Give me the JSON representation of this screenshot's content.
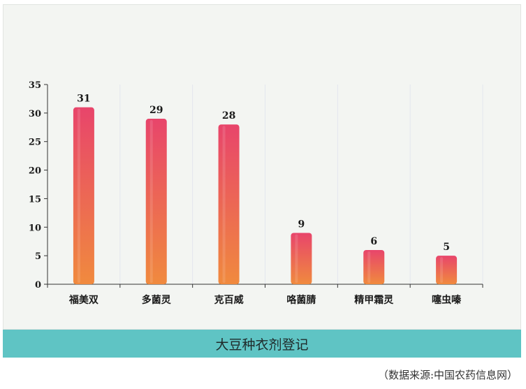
{
  "chart_data": {
    "type": "bar",
    "categories": [
      "福美双",
      "多菌灵",
      "克百威",
      "咯菌腈",
      "精甲霜灵",
      "噻虫嗪"
    ],
    "values": [
      31,
      29,
      28,
      9,
      6,
      5
    ],
    "yticks": [
      0,
      5,
      10,
      15,
      20,
      25,
      30,
      35
    ],
    "ylim": [
      0,
      35
    ],
    "grid": false,
    "bar_gradient": [
      "#e8456b",
      "#f08a3e"
    ]
  },
  "banner": {
    "title": "大豆种衣剂登记"
  },
  "source": "（数据来源:中国农药信息网）",
  "colors": {
    "panel": "#f3f5f2",
    "banner": "#5fc4c4",
    "axis": "#333333"
  }
}
